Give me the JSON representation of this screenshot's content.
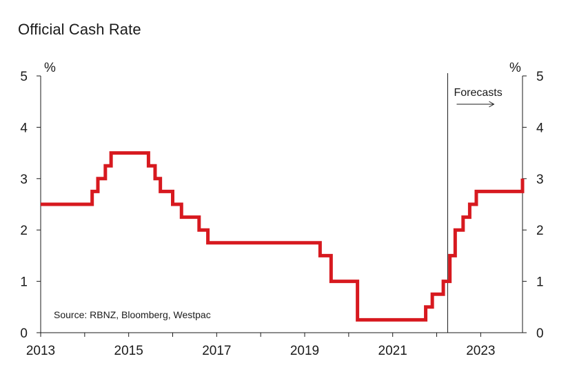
{
  "chart_data": {
    "type": "line",
    "step": true,
    "title": "Official Cash Rate",
    "ylabel_left": "%",
    "ylabel_right": "%",
    "ylim": [
      0,
      5
    ],
    "yticks": [
      0,
      1,
      2,
      3,
      4,
      5
    ],
    "xlim": [
      2013,
      2023.95
    ],
    "xticks": [
      2013,
      2015,
      2017,
      2019,
      2021,
      2023
    ],
    "forecast_start": 2022.25,
    "forecast_label": "Forecasts",
    "source": "Source: RBNZ, Bloomberg, Westpac",
    "series": [
      {
        "name": "Official Cash Rate",
        "color": "#d7191f",
        "x": [
          2013.0,
          2014.17,
          2014.3,
          2014.47,
          2014.6,
          2015.45,
          2015.6,
          2015.72,
          2016.0,
          2016.2,
          2016.6,
          2016.8,
          2019.35,
          2019.6,
          2020.2,
          2021.75,
          2021.9,
          2022.15,
          2022.3,
          2022.42,
          2022.6,
          2022.75,
          2022.9,
          2023.95
        ],
        "values": [
          2.5,
          2.75,
          3.0,
          3.25,
          3.5,
          3.25,
          3.0,
          2.75,
          2.5,
          2.25,
          2.0,
          1.75,
          1.5,
          1.0,
          0.25,
          0.5,
          0.75,
          1.0,
          1.5,
          2.0,
          2.25,
          2.5,
          2.75,
          3.0
        ]
      }
    ]
  }
}
